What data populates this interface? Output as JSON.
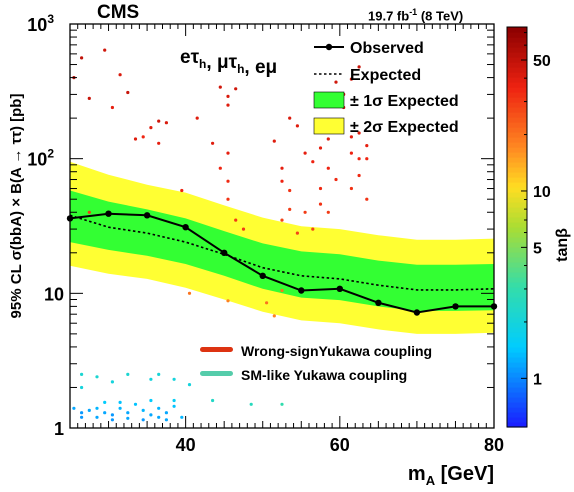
{
  "header": {
    "experiment": "CMS",
    "lumi_value": "19.7 fb",
    "lumi_exp": "-1",
    "lumi_energy": " (8 TeV)"
  },
  "chart_data": {
    "type": "line",
    "xlabel_main": "m",
    "xlabel_sub": "A",
    "xlabel_unit": " [GeV]",
    "ylabel": "95% CL  σ(bbA) × B(A → ττ) [pb]",
    "xlim": [
      25,
      80
    ],
    "ylim": [
      1,
      1000
    ],
    "ylog": true,
    "x_ticks": [
      {
        "v": 40,
        "label": "40"
      },
      {
        "v": 60,
        "label": "60"
      },
      {
        "v": 80,
        "label": "80"
      }
    ],
    "y_ticks": [
      {
        "v": 1,
        "label": "1"
      },
      {
        "v": 10,
        "label": "10"
      },
      {
        "v": 100,
        "label": "10",
        "exp": "2"
      },
      {
        "v": 1000,
        "label": "10",
        "exp": "3"
      }
    ],
    "channels_label": "eτ",
    "channels_parts": [
      {
        "t": "eτ",
        "s": "h"
      },
      {
        "t": ", μτ",
        "s": "h"
      },
      {
        "t": ", eμ",
        "s": ""
      }
    ],
    "legend": {
      "observed": "Observed",
      "expected": "Expected",
      "band1": "± 1σ Expected",
      "band2": "± 2σ Expected",
      "wrong_sign": "Wrong-signYukawa coupling",
      "sm_like": "SM-like Yukawa coupling"
    },
    "colorbar": {
      "label": "tanβ",
      "log": true,
      "range": [
        0.55,
        75
      ],
      "ticks": [
        {
          "v": 1,
          "label": "1"
        },
        {
          "v": 5,
          "label": "5"
        },
        {
          "v": 10,
          "label": "10"
        },
        {
          "v": 50,
          "label": "50"
        }
      ]
    },
    "colors": {
      "band1": "#33ff33",
      "band2": "#ffff33",
      "line": "#000000",
      "wrong_sign": "#dd3311",
      "sm_like": "#55ccaa"
    },
    "x": [
      25,
      30,
      35,
      40,
      45,
      50,
      55,
      60,
      65,
      70,
      75,
      80
    ],
    "observed": [
      36,
      39,
      38,
      31,
      20,
      13.5,
      10.5,
      10.8,
      8.5,
      7.2,
      8,
      8
    ],
    "expected": [
      38,
      31,
      28,
      24,
      19.5,
      15.5,
      13.5,
      12.8,
      11.5,
      10.6,
      10.6,
      10.8
    ],
    "band1_low": [
      24,
      21,
      19,
      16.5,
      13.5,
      10.8,
      9.3,
      8.9,
      8,
      7.4,
      7.4,
      7.5
    ],
    "band1_high": [
      58,
      48,
      42,
      36,
      29,
      23.5,
      20.5,
      19.5,
      17.5,
      16.3,
      16.3,
      16.5
    ],
    "band2_low": [
      16,
      14,
      12.8,
      11,
      9,
      7.3,
      6.3,
      6,
      5.4,
      5,
      5,
      5.1
    ],
    "band2_high": [
      95,
      76,
      64,
      56,
      45,
      36.5,
      31.5,
      30,
      27,
      25,
      25,
      25.5
    ],
    "scatter_points": [
      [
        29.5,
        640,
        45
      ],
      [
        31.5,
        420,
        42
      ],
      [
        32.5,
        310,
        48
      ],
      [
        30.5,
        240,
        38
      ],
      [
        33.5,
        140,
        40
      ],
      [
        34.5,
        145,
        35
      ],
      [
        35.5,
        170,
        40
      ],
      [
        36.5,
        190,
        45
      ],
      [
        37.5,
        185,
        42
      ],
      [
        36.5,
        130,
        38
      ],
      [
        26.5,
        560,
        50
      ],
      [
        27.5,
        280,
        48
      ],
      [
        25.5,
        400,
        55
      ],
      [
        27.5,
        40,
        30
      ],
      [
        39.5,
        58,
        35
      ],
      [
        41.5,
        200,
        40
      ],
      [
        44.5,
        340,
        45
      ],
      [
        45.5,
        290,
        42
      ],
      [
        45.5,
        250,
        40
      ],
      [
        46.5,
        330,
        45
      ],
      [
        43.5,
        130,
        40
      ],
      [
        45.5,
        110,
        38
      ],
      [
        44.5,
        85,
        35
      ],
      [
        45.5,
        68,
        34
      ],
      [
        45.5,
        50,
        32
      ],
      [
        46.5,
        35,
        30
      ],
      [
        47.5,
        30,
        30
      ],
      [
        51.5,
        135,
        40
      ],
      [
        52.5,
        85,
        38
      ],
      [
        52.5,
        68,
        36
      ],
      [
        53.5,
        200,
        42
      ],
      [
        54.5,
        175,
        40
      ],
      [
        55.5,
        110,
        38
      ],
      [
        56.5,
        95,
        36
      ],
      [
        57.5,
        120,
        38
      ],
      [
        58.5,
        140,
        40
      ],
      [
        58.5,
        85,
        36
      ],
      [
        57.5,
        60,
        34
      ],
      [
        57.5,
        46,
        32
      ],
      [
        55.5,
        40,
        30
      ],
      [
        53.5,
        42,
        30
      ],
      [
        52.5,
        35,
        28
      ],
      [
        53.5,
        58,
        32
      ],
      [
        54.5,
        28,
        28
      ],
      [
        56.5,
        30,
        28
      ],
      [
        59.5,
        370,
        45
      ],
      [
        60.5,
        300,
        42
      ],
      [
        61.5,
        390,
        45
      ],
      [
        62.5,
        480,
        48
      ],
      [
        60.5,
        240,
        40
      ],
      [
        61.5,
        145,
        38
      ],
      [
        62.5,
        155,
        40
      ],
      [
        63.5,
        125,
        38
      ],
      [
        61.5,
        110,
        36
      ],
      [
        62.5,
        100,
        35
      ],
      [
        63.5,
        100,
        35
      ],
      [
        61.5,
        60,
        32
      ],
      [
        62.5,
        75,
        34
      ],
      [
        63.5,
        50,
        32
      ],
      [
        59.5,
        70,
        34
      ],
      [
        58.5,
        40,
        30
      ],
      [
        40.5,
        10,
        20
      ],
      [
        50.5,
        8.5,
        20
      ],
      [
        51.5,
        6.8,
        18
      ],
      [
        52.5,
        10.5,
        20
      ],
      [
        45.5,
        8.8,
        18
      ],
      [
        26.5,
        2.5,
        2.2
      ],
      [
        26.5,
        2,
        2
      ],
      [
        28.5,
        2.4,
        2.2
      ],
      [
        30.5,
        2.2,
        2
      ],
      [
        32.5,
        2.5,
        2.2
      ],
      [
        35.5,
        2.3,
        2
      ],
      [
        36.5,
        2.5,
        2.1
      ],
      [
        38.5,
        2.3,
        2
      ],
      [
        40.5,
        2.1,
        2
      ],
      [
        43.5,
        1.6,
        2.4
      ],
      [
        48.5,
        1.5,
        2.6
      ],
      [
        52.5,
        1.5,
        3
      ],
      [
        25.5,
        1.4,
        1.2
      ],
      [
        26.5,
        1.3,
        1.1
      ],
      [
        27.5,
        1.35,
        1.2
      ],
      [
        28.5,
        1.4,
        1.3
      ],
      [
        29.5,
        1.3,
        1.2
      ],
      [
        30.5,
        1.25,
        1.1
      ],
      [
        31.5,
        1.4,
        1.3
      ],
      [
        32.5,
        1.3,
        1.2
      ],
      [
        33.5,
        1.5,
        1.4
      ],
      [
        34.5,
        1.35,
        1.3
      ],
      [
        35.5,
        1.25,
        1.2
      ],
      [
        36.5,
        1.4,
        1.3
      ],
      [
        37.5,
        1.3,
        1.2
      ],
      [
        38.5,
        1.45,
        1.4
      ],
      [
        26.5,
        1.2,
        1.1
      ],
      [
        28.5,
        1.2,
        1.2
      ],
      [
        30.5,
        1.15,
        1.1
      ],
      [
        32.5,
        1.18,
        1.2
      ],
      [
        34.5,
        1.15,
        1.1
      ],
      [
        36.5,
        1.2,
        1.2
      ],
      [
        39.5,
        1.2,
        1.3
      ],
      [
        37.5,
        1.15,
        1.2
      ],
      [
        29.5,
        1.55,
        1.5
      ],
      [
        31.5,
        1.55,
        1.4
      ],
      [
        35.5,
        1.6,
        1.5
      ],
      [
        38.5,
        1.6,
        1.6
      ]
    ]
  }
}
